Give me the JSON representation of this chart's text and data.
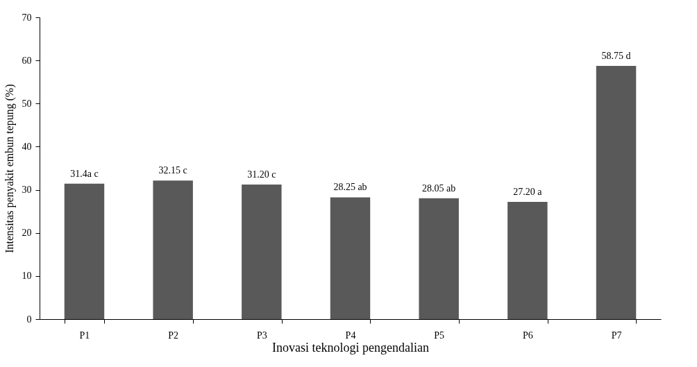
{
  "chart_data": {
    "type": "bar",
    "xlabel": "Inovasi teknologi pengendalian",
    "ylabel": "Intensitas penyakit embun tepung (%)",
    "categories": [
      "P1",
      "P2",
      "P3",
      "P4",
      "P5",
      "P6",
      "P7"
    ],
    "values": [
      31.4,
      32.15,
      31.2,
      28.25,
      28.05,
      27.2,
      58.75
    ],
    "value_labels": [
      "31.4a c",
      "32.15 c",
      "31.20 c",
      "28.25 ab",
      "28.05 ab",
      "27.20 a",
      "58.75 d"
    ],
    "color": "#595959",
    "ylim": [
      0,
      70
    ],
    "yticks": [
      0,
      10,
      20,
      30,
      40,
      50,
      60,
      70
    ],
    "grid": false
  }
}
